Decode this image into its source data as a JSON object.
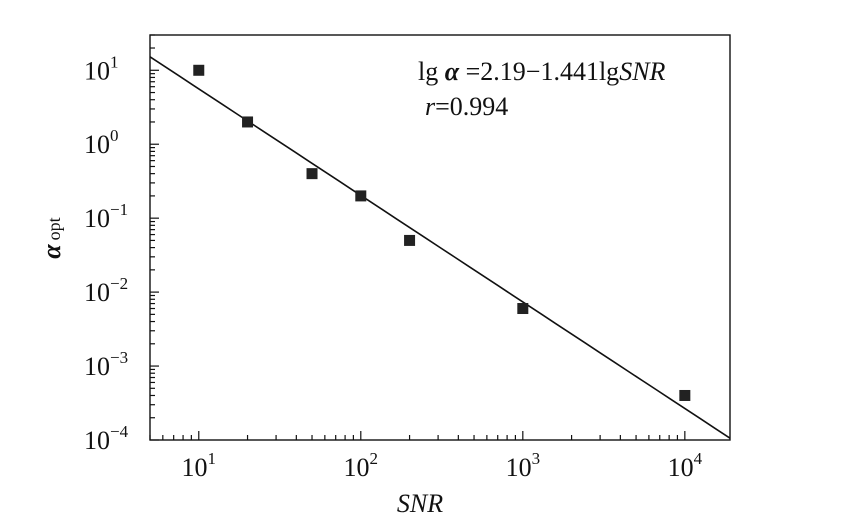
{
  "chart_data": {
    "type": "scatter",
    "title": "",
    "xlabel": "SNR",
    "ylabel": "α",
    "ylabel_sub": "opt",
    "xscale": "log",
    "yscale": "log",
    "xlim": [
      5,
      19000
    ],
    "ylim": [
      0.0001,
      30
    ],
    "grid": false,
    "x_ticks": [
      {
        "value": 10,
        "base": "10",
        "exp": "1"
      },
      {
        "value": 100,
        "base": "10",
        "exp": "2"
      },
      {
        "value": 1000,
        "base": "10",
        "exp": "3"
      },
      {
        "value": 10000,
        "base": "10",
        "exp": "4"
      }
    ],
    "y_ticks": [
      {
        "value": 10,
        "base": "10",
        "exp": "1"
      },
      {
        "value": 1,
        "base": "10",
        "exp": "0"
      },
      {
        "value": 0.1,
        "base": "10",
        "exp": "−1"
      },
      {
        "value": 0.01,
        "base": "10",
        "exp": "−2"
      },
      {
        "value": 0.001,
        "base": "10",
        "exp": "−3"
      },
      {
        "value": 0.0001,
        "base": "10",
        "exp": "−4"
      }
    ],
    "series": [
      {
        "points": [
          {
            "x": 10,
            "y": 10
          },
          {
            "x": 20,
            "y": 2
          },
          {
            "x": 50,
            "y": 0.4
          },
          {
            "x": 100,
            "y": 0.2
          },
          {
            "x": 200,
            "y": 0.05
          },
          {
            "x": 1000,
            "y": 0.006
          },
          {
            "x": 10000,
            "y": 0.0004
          }
        ],
        "marker": "square",
        "color": "#222222"
      }
    ],
    "fit_line": {
      "intercept": 2.19,
      "slope": -1.441,
      "x_range": [
        5,
        19000
      ],
      "color": "#111111"
    },
    "annotations": {
      "equation": {
        "lg": "lg",
        "alpha": "α",
        "rest": "=2.19−1.441lg",
        "snr": "SNR"
      },
      "correlation": {
        "r": "r",
        "rest": "=0.994"
      }
    }
  }
}
